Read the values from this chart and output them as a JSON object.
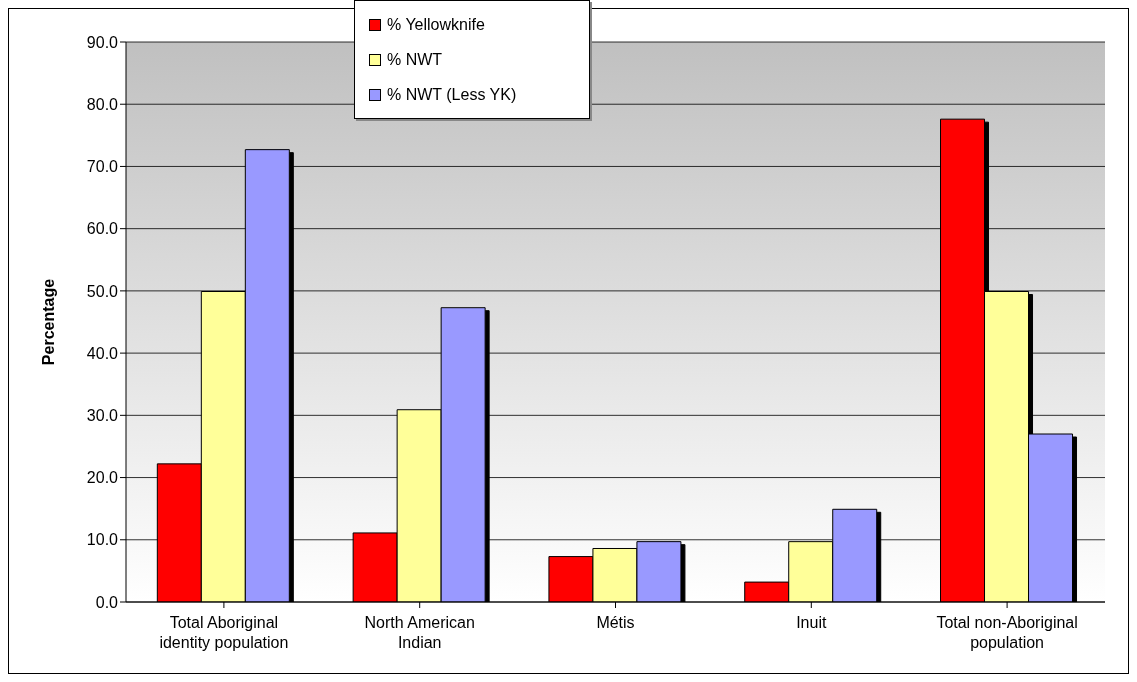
{
  "chart_data": {
    "type": "bar",
    "ylabel": "Percentage",
    "categories": [
      "Total Aboriginal identity population",
      "North American Indian",
      "Métis",
      "Inuit",
      "Total non-Aboriginal population"
    ],
    "series": [
      {
        "name": "% Yellowknife",
        "color": "#ff0000",
        "values": [
          22.2,
          11.1,
          7.3,
          3.2,
          77.6
        ]
      },
      {
        "name": "% NWT",
        "color": "#ffff99",
        "values": [
          49.9,
          30.9,
          8.6,
          9.7,
          49.9
        ]
      },
      {
        "name": "% NWT (Less YK)",
        "color": "#9999ff",
        "values": [
          72.7,
          47.3,
          9.7,
          14.9,
          27.0
        ]
      }
    ],
    "ylim": [
      0,
      90
    ],
    "yticks": [
      {
        "value": 0,
        "label": "0.0"
      },
      {
        "value": 10,
        "label": "10.0"
      },
      {
        "value": 20,
        "label": "20.0"
      },
      {
        "value": 30,
        "label": "30.0"
      },
      {
        "value": 40,
        "label": "40.0"
      },
      {
        "value": 50,
        "label": "50.0"
      },
      {
        "value": 60,
        "label": "60.0"
      },
      {
        "value": 70,
        "label": "70.0"
      },
      {
        "value": 80,
        "label": "80.0"
      },
      {
        "value": 90,
        "label": "90.0"
      }
    ],
    "grid": "y",
    "legend": "top"
  }
}
